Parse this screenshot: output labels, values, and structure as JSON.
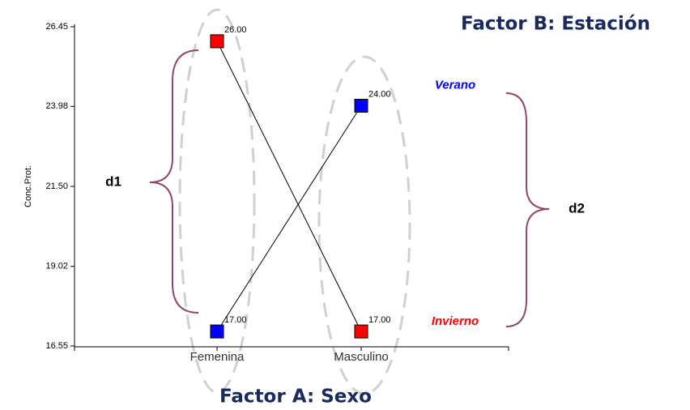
{
  "chart_data": {
    "type": "line",
    "title": "Factor B: Estación",
    "x_label": "Factor A: Sexo",
    "y_label": "Conc.Prot.",
    "annotations": [
      "d1",
      "d2"
    ],
    "categories": [
      "Femenina",
      "Masculino"
    ],
    "series": [
      {
        "name": "Verano",
        "color": "#0000ff",
        "values": [
          17,
          24
        ],
        "value_labels": [
          "17.00",
          "24.00"
        ]
      },
      {
        "name": "Invierno",
        "color": "#ff0000",
        "values": [
          26,
          17
        ],
        "value_labels": [
          "26.00",
          "17.00"
        ]
      }
    ],
    "ylim": [
      16.55,
      26.45
    ],
    "yticks": [
      26.45,
      23.98,
      {
        "value": 21.5,
        "label": "21.50"
      },
      19.02,
      16.55
    ]
  }
}
